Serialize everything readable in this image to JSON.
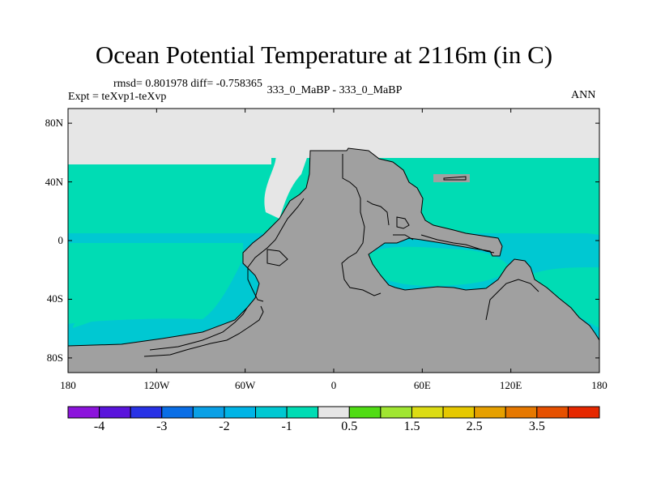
{
  "header": {
    "title": "Ocean Potential Temperature at 2116m (in C)",
    "stats": "rmsd= 0.801978 diff= -0.758365",
    "expt": "Expt = teXvp1-teXvp",
    "cases": "333_0_MaBP - 333_0_MaBP",
    "season": "ANN"
  },
  "map": {
    "lat_ticks": [
      {
        "value": 80,
        "label": "80N"
      },
      {
        "value": 40,
        "label": "40N"
      },
      {
        "value": 0,
        "label": "0"
      },
      {
        "value": -40,
        "label": "40S"
      },
      {
        "value": -80,
        "label": "80S"
      }
    ],
    "lon_ticks": [
      {
        "value": -180,
        "label": "180"
      },
      {
        "value": -120,
        "label": "120W"
      },
      {
        "value": -60,
        "label": "60W"
      },
      {
        "value": 0,
        "label": "0"
      },
      {
        "value": 60,
        "label": "60E"
      },
      {
        "value": 120,
        "label": "120E"
      },
      {
        "value": 180,
        "label": "180"
      }
    ],
    "colors": {
      "land": "#a0a0a0",
      "near_zero": "#e6e6e6",
      "bin_minus1": "#00dcb4",
      "bin_minus1_5": "#00c8d2",
      "border": "#000000"
    }
  },
  "colorbar": {
    "colors": [
      "#8c14dc",
      "#5a14dc",
      "#2832e6",
      "#0a6ee6",
      "#0aa0e6",
      "#00b4e6",
      "#00c8d2",
      "#00dcb4",
      "#e6e6e6",
      "#50dc14",
      "#a0e632",
      "#dcdc14",
      "#e6c800",
      "#e6a000",
      "#e67800",
      "#e65000",
      "#e62800"
    ],
    "labels": [
      "-4",
      "-3",
      "-2",
      "-1",
      "0.5",
      "1.5",
      "2.5",
      "3.5"
    ]
  }
}
